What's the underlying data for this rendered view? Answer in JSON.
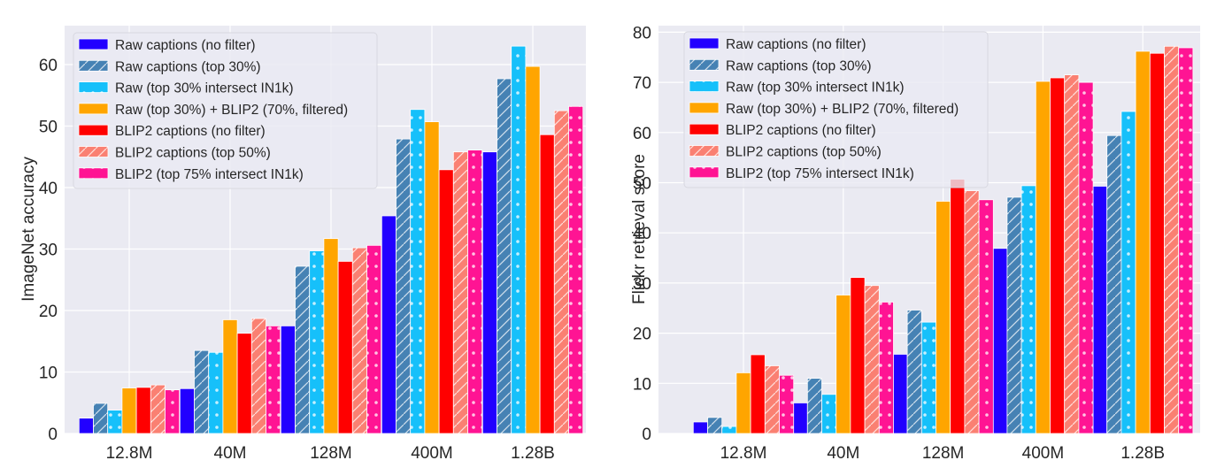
{
  "chart_data": [
    {
      "type": "bar",
      "title": "",
      "xlabel": "",
      "ylabel": "ImageNet accuracy",
      "ylim": [
        0,
        66
      ],
      "yticks": [
        0,
        10,
        20,
        30,
        40,
        50,
        60
      ],
      "grid": true,
      "legend_position": "top-left",
      "categories": [
        "12.8M",
        "40M",
        "128M",
        "400M",
        "1.28B"
      ],
      "series": [
        {
          "name": "Raw captions (no filter)",
          "color": "#2200ff",
          "pattern": "solid",
          "values": [
            2.5,
            7.3,
            17.5,
            35.4,
            45.8
          ]
        },
        {
          "name": "Raw captions (top 30%)",
          "color": "#4682b4",
          "pattern": "hatch",
          "values": [
            4.9,
            13.5,
            27.2,
            47.9,
            57.7
          ]
        },
        {
          "name": "Raw (top 30% intersect IN1k)",
          "color": "#16c0fa",
          "pattern": "dots",
          "values": [
            3.8,
            13.2,
            29.7,
            52.7,
            63.0
          ]
        },
        {
          "name": "Raw (top 30%) + BLIP2 (70%, filtered)",
          "color": "#ffa500",
          "pattern": "solid",
          "values": [
            7.4,
            18.5,
            31.7,
            50.7,
            59.7
          ]
        },
        {
          "name": "BLIP2 captions (no filter)",
          "color": "#ff0000",
          "pattern": "solid",
          "values": [
            7.5,
            16.3,
            28.0,
            42.9,
            48.6
          ]
        },
        {
          "name": "BLIP2 captions (top 50%)",
          "color": "#fa8072",
          "pattern": "hatch",
          "values": [
            7.9,
            18.7,
            30.2,
            45.8,
            52.5
          ]
        },
        {
          "name": "BLIP2 (top 75% intersect IN1k)",
          "color": "#ff1493",
          "pattern": "dots",
          "values": [
            7.1,
            17.5,
            30.6,
            46.1,
            53.2
          ]
        }
      ]
    },
    {
      "type": "bar",
      "title": "",
      "xlabel": "",
      "ylabel": "Flickr retrieval score",
      "ylim": [
        0,
        81
      ],
      "yticks": [
        0,
        10,
        20,
        30,
        40,
        50,
        60,
        70,
        80
      ],
      "grid": true,
      "legend_position": "top-left",
      "categories": [
        "12.8M",
        "40M",
        "128M",
        "400M",
        "1.28B"
      ],
      "series": [
        {
          "name": "Raw captions (no filter)",
          "color": "#2200ff",
          "pattern": "solid",
          "values": [
            2.3,
            6.1,
            15.8,
            36.9,
            49.3
          ]
        },
        {
          "name": "Raw captions (top 30%)",
          "color": "#4682b4",
          "pattern": "hatch",
          "values": [
            3.2,
            11.0,
            24.6,
            47.1,
            59.4
          ]
        },
        {
          "name": "Raw (top 30% intersect IN1k)",
          "color": "#16c0fa",
          "pattern": "dots",
          "values": [
            1.4,
            7.8,
            22.2,
            49.4,
            64.2
          ]
        },
        {
          "name": "Raw (top 30%) + BLIP2 (70%, filtered)",
          "color": "#ffa500",
          "pattern": "solid",
          "values": [
            12.1,
            27.6,
            46.3,
            70.2,
            76.2
          ]
        },
        {
          "name": "BLIP2 captions (no filter)",
          "color": "#ff0000",
          "pattern": "solid",
          "values": [
            15.7,
            31.1,
            50.7,
            70.9,
            75.8
          ]
        },
        {
          "name": "BLIP2 captions (top 50%)",
          "color": "#fa8072",
          "pattern": "hatch",
          "values": [
            13.5,
            29.5,
            48.4,
            71.5,
            77.2
          ]
        },
        {
          "name": "BLIP2 (top 75% intersect IN1k)",
          "color": "#ff1493",
          "pattern": "dots",
          "values": [
            11.6,
            26.2,
            46.6,
            70.0,
            76.9
          ]
        }
      ]
    }
  ]
}
